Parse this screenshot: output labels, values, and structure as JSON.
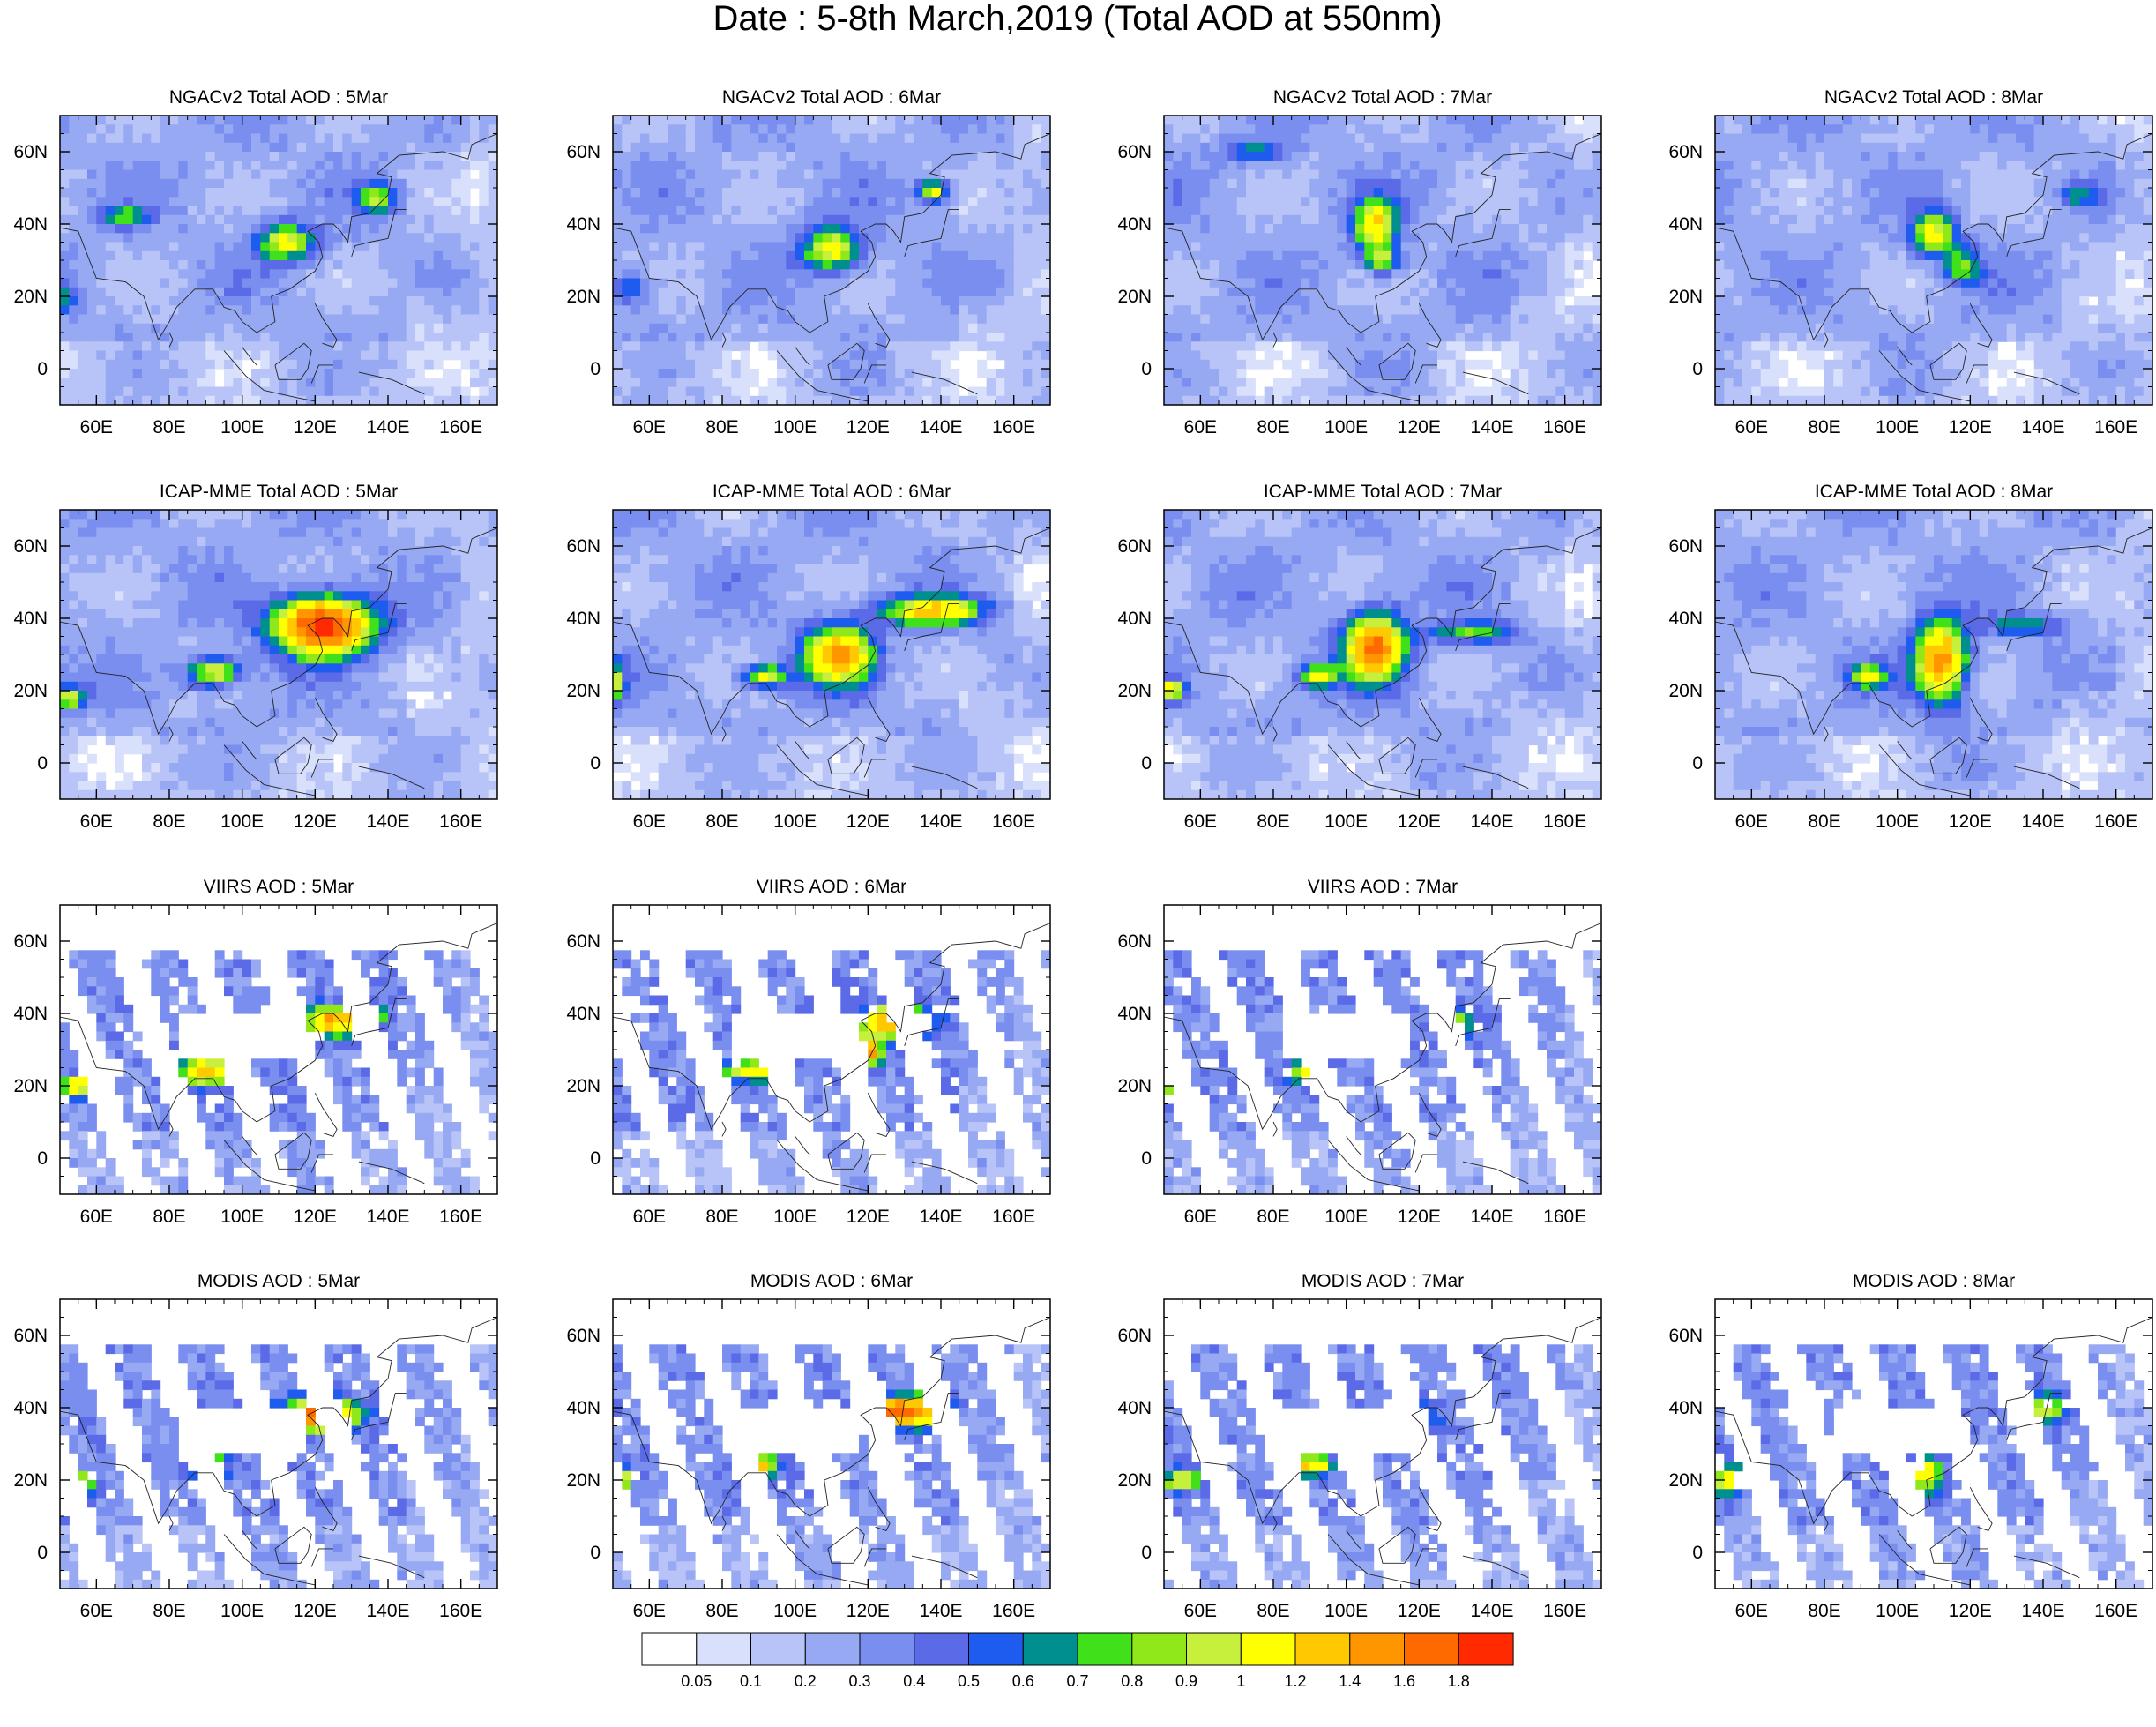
{
  "figure_title": "Date : 5-8th March,2019 (Total AOD at 550nm)",
  "chart_data": {
    "type": "heatmap",
    "title": "Date : 5-8th March,2019 (Total AOD at 550nm)",
    "xlim": [
      50,
      170
    ],
    "ylim": [
      -10,
      70
    ],
    "x_ticks": [
      60,
      80,
      100,
      120,
      140,
      160
    ],
    "x_tick_labels": [
      "60E",
      "80E",
      "100E",
      "120E",
      "140E",
      "160E"
    ],
    "y_ticks": [
      0,
      20,
      40,
      60
    ],
    "y_tick_labels": [
      "0",
      "20N",
      "40N",
      "60N"
    ],
    "grid": false,
    "legend": "bottom colorbar",
    "colorbar": {
      "levels": [
        "0.05",
        "0.1",
        "0.2",
        "0.3",
        "0.4",
        "0.5",
        "0.6",
        "0.7",
        "0.8",
        "0.9",
        "1",
        "1.2",
        "1.4",
        "1.6",
        "1.8"
      ],
      "colors": [
        "#ffffff",
        "#d9e0fb",
        "#b8c4f7",
        "#97a9f3",
        "#7a8ef0",
        "#5b6ae6",
        "#1e5cf0",
        "#008f8f",
        "#40e01a",
        "#90e81a",
        "#c6f03c",
        "#ffff00",
        "#ffc800",
        "#ff9600",
        "#ff6a00",
        "#ff2a00"
      ]
    },
    "panels": [
      {
        "title": "NGACv2 Total AOD : 5Mar",
        "row": 0,
        "col": 0,
        "type": "model",
        "plumes": [
          {
            "lon": 112,
            "lat": 35,
            "rx": 8,
            "ry": 5,
            "peak": 0.85
          },
          {
            "lon": 137,
            "lat": 47,
            "rx": 5,
            "ry": 4,
            "peak": 0.65
          },
          {
            "lon": 68,
            "lat": 42,
            "rx": 6,
            "ry": 3,
            "peak": 0.5
          },
          {
            "lon": 50,
            "lat": 20,
            "rx": 5,
            "ry": 4,
            "peak": 0.45
          }
        ]
      },
      {
        "title": "NGACv2 Total AOD : 6Mar",
        "row": 0,
        "col": 1,
        "type": "model",
        "plumes": [
          {
            "lon": 110,
            "lat": 33,
            "rx": 8,
            "ry": 6,
            "peak": 0.9
          },
          {
            "lon": 138,
            "lat": 49,
            "rx": 4,
            "ry": 3,
            "peak": 0.85
          },
          {
            "lon": 55,
            "lat": 22,
            "rx": 6,
            "ry": 5,
            "peak": 0.4
          }
        ]
      },
      {
        "title": "NGACv2 Total AOD : 7Mar",
        "row": 0,
        "col": 2,
        "type": "model",
        "plumes": [
          {
            "lon": 108,
            "lat": 40,
            "rx": 6,
            "ry": 7,
            "peak": 0.9
          },
          {
            "lon": 110,
            "lat": 30,
            "rx": 5,
            "ry": 4,
            "peak": 0.7
          },
          {
            "lon": 75,
            "lat": 60,
            "rx": 8,
            "ry": 3,
            "peak": 0.45
          }
        ]
      },
      {
        "title": "NGACv2 Total AOD : 8Mar",
        "row": 0,
        "col": 3,
        "type": "model",
        "plumes": [
          {
            "lon": 110,
            "lat": 37,
            "rx": 6,
            "ry": 6,
            "peak": 0.85
          },
          {
            "lon": 118,
            "lat": 28,
            "rx": 5,
            "ry": 5,
            "peak": 0.55
          },
          {
            "lon": 150,
            "lat": 48,
            "rx": 5,
            "ry": 3,
            "peak": 0.45
          }
        ]
      },
      {
        "title": "ICAP-MME Total AOD : 5Mar",
        "row": 1,
        "col": 0,
        "type": "model",
        "plumes": [
          {
            "lon": 122,
            "lat": 38,
            "rx": 13,
            "ry": 8,
            "peak": 1.7
          },
          {
            "lon": 92,
            "lat": 25,
            "rx": 7,
            "ry": 4,
            "peak": 0.9
          },
          {
            "lon": 52,
            "lat": 18,
            "rx": 5,
            "ry": 3,
            "peak": 0.8
          }
        ]
      },
      {
        "title": "ICAP-MME Total AOD : 6Mar",
        "row": 1,
        "col": 1,
        "type": "model",
        "plumes": [
          {
            "lon": 112,
            "lat": 30,
            "rx": 9,
            "ry": 8,
            "peak": 1.2
          },
          {
            "lon": 138,
            "lat": 42,
            "rx": 14,
            "ry": 4,
            "peak": 1.0
          },
          {
            "lon": 92,
            "lat": 24,
            "rx": 6,
            "ry": 3,
            "peak": 0.85
          },
          {
            "lon": 50,
            "lat": 22,
            "rx": 3,
            "ry": 5,
            "peak": 0.8
          }
        ]
      },
      {
        "title": "ICAP-MME Total AOD : 7Mar",
        "row": 1,
        "col": 2,
        "type": "model",
        "plumes": [
          {
            "lon": 108,
            "lat": 32,
            "rx": 8,
            "ry": 9,
            "peak": 1.4
          },
          {
            "lon": 135,
            "lat": 36,
            "rx": 12,
            "ry": 3,
            "peak": 0.55
          },
          {
            "lon": 92,
            "lat": 24,
            "rx": 5,
            "ry": 3,
            "peak": 0.85
          },
          {
            "lon": 52,
            "lat": 20,
            "rx": 4,
            "ry": 3,
            "peak": 0.8
          }
        ]
      },
      {
        "title": "ICAP-MME Total AOD : 8Mar",
        "row": 1,
        "col": 3,
        "type": "model",
        "plumes": [
          {
            "lon": 112,
            "lat": 28,
            "rx": 7,
            "ry": 11,
            "peak": 1.3
          },
          {
            "lon": 92,
            "lat": 24,
            "rx": 5,
            "ry": 3,
            "peak": 0.8
          },
          {
            "lon": 135,
            "lat": 38,
            "rx": 10,
            "ry": 3,
            "peak": 0.45
          }
        ]
      },
      {
        "title": "VIIRS AOD : 5Mar",
        "row": 2,
        "col": 0,
        "type": "sat",
        "plumes": [
          {
            "lon": 125,
            "lat": 38,
            "rx": 8,
            "ry": 4,
            "peak": 1.1
          },
          {
            "lon": 90,
            "lat": 24,
            "rx": 7,
            "ry": 4,
            "peak": 1.0
          },
          {
            "lon": 55,
            "lat": 20,
            "rx": 5,
            "ry": 3,
            "peak": 0.85
          },
          {
            "lon": 135,
            "lat": 39,
            "rx": 4,
            "ry": 3,
            "peak": 0.8
          }
        ]
      },
      {
        "title": "VIIRS AOD : 6Mar",
        "row": 2,
        "col": 1,
        "type": "sat",
        "plumes": [
          {
            "lon": 128,
            "lat": 38,
            "rx": 9,
            "ry": 4,
            "peak": 1.3
          },
          {
            "lon": 88,
            "lat": 24,
            "rx": 7,
            "ry": 3,
            "peak": 0.85
          },
          {
            "lon": 120,
            "lat": 30,
            "rx": 4,
            "ry": 4,
            "peak": 1.2
          }
        ]
      },
      {
        "title": "VIIRS AOD : 7Mar",
        "row": 2,
        "col": 2,
        "type": "sat",
        "plumes": [
          {
            "lon": 90,
            "lat": 24,
            "rx": 6,
            "ry": 3,
            "peak": 0.85
          },
          {
            "lon": 54,
            "lat": 18,
            "rx": 4,
            "ry": 4,
            "peak": 0.8
          },
          {
            "lon": 130,
            "lat": 38,
            "rx": 6,
            "ry": 4,
            "peak": 0.55
          }
        ]
      },
      {
        "title": "MODIS AOD : 5Mar",
        "row": 3,
        "col": 0,
        "type": "sat",
        "plumes": [
          {
            "lon": 122,
            "lat": 38,
            "rx": 9,
            "ry": 4,
            "peak": 1.6
          },
          {
            "lon": 90,
            "lat": 24,
            "rx": 5,
            "ry": 3,
            "peak": 1.0
          },
          {
            "lon": 54,
            "lat": 19,
            "rx": 5,
            "ry": 3,
            "peak": 0.9
          }
        ]
      },
      {
        "title": "MODIS AOD : 6Mar",
        "row": 3,
        "col": 1,
        "type": "sat",
        "plumes": [
          {
            "lon": 130,
            "lat": 39,
            "rx": 10,
            "ry": 4,
            "peak": 1.5
          },
          {
            "lon": 90,
            "lat": 24,
            "rx": 5,
            "ry": 3,
            "peak": 1.0
          },
          {
            "lon": 52,
            "lat": 20,
            "rx": 3,
            "ry": 4,
            "peak": 0.85
          }
        ]
      },
      {
        "title": "MODIS AOD : 7Mar",
        "row": 3,
        "col": 2,
        "type": "sat",
        "plumes": [
          {
            "lon": 90,
            "lat": 24,
            "rx": 6,
            "ry": 3,
            "peak": 0.9
          },
          {
            "lon": 55,
            "lat": 20,
            "rx": 5,
            "ry": 3,
            "peak": 0.8
          },
          {
            "lon": 118,
            "lat": 37,
            "rx": 7,
            "ry": 4,
            "peak": 0.6
          }
        ]
      },
      {
        "title": "MODIS AOD : 8Mar",
        "row": 3,
        "col": 3,
        "type": "sat",
        "plumes": [
          {
            "lon": 108,
            "lat": 22,
            "rx": 4,
            "ry": 5,
            "peak": 0.9
          },
          {
            "lon": 54,
            "lat": 20,
            "rx": 4,
            "ry": 4,
            "peak": 0.85
          },
          {
            "lon": 140,
            "lat": 40,
            "rx": 8,
            "ry": 4,
            "peak": 0.55
          }
        ]
      }
    ]
  }
}
